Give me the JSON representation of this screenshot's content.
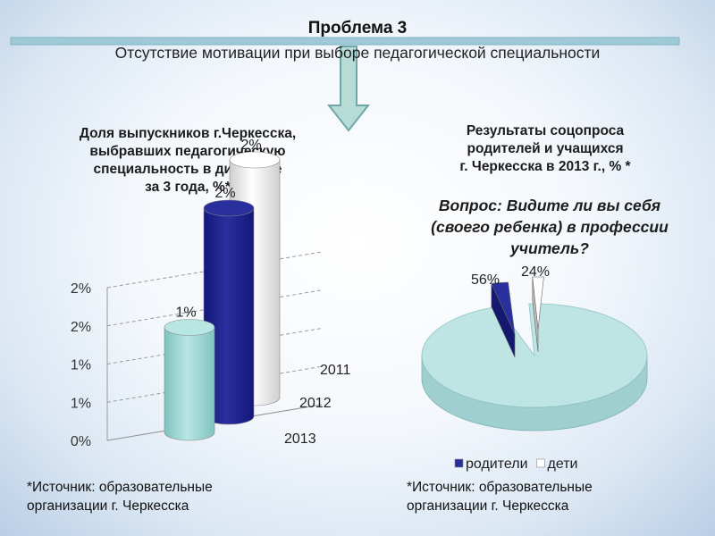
{
  "header": {
    "title": "Проблема 3",
    "subtitle": "Отсутствие мотивации при выборе педагогической специальности"
  },
  "colors": {
    "accent_bar": "#9fc9d6",
    "arrow_fill": "#b7dcd6",
    "arrow_stroke": "#6fa7a8"
  },
  "chart_data": [
    {
      "type": "bar",
      "title": "Доля   выпускников г.Черкесска,\nвыбравших педагогическую\nспециальность в динамике\nза 3 года, %*",
      "categories": [
        "2013",
        "2012",
        "2011"
      ],
      "values": [
        1,
        2,
        2
      ],
      "data_labels": [
        "1%",
        "2%",
        "2%"
      ],
      "y_ticks": [
        "0%",
        "1%",
        "1%",
        "2%",
        "2%"
      ],
      "ylim": [
        0,
        2
      ],
      "grid": true,
      "colors": [
        "#b8e6e3",
        "#2a2f9e",
        "#ffffff"
      ]
    },
    {
      "type": "pie",
      "title": "Результаты соцопроса\nродителей и учащихся\n г. Черкесска в 2013 г., % *",
      "question": "Вопрос: Видите ли вы себя\n(своего ребенка) в профессии\nучитель?",
      "legend_position": "bottom",
      "slices": [
        {
          "name": "родители",
          "value": 56,
          "label": "56%",
          "color": "#2a2f9e"
        },
        {
          "name": "дети",
          "value": 24,
          "label": "24%",
          "color": "#ffffff"
        }
      ],
      "remainder_color": "#bfe4e4"
    }
  ],
  "sources": {
    "left": "*Источник: образовательные\nорганизации г. Черкесска",
    "right": "*Источник: образовательные\nорганизации г. Черкесска"
  }
}
